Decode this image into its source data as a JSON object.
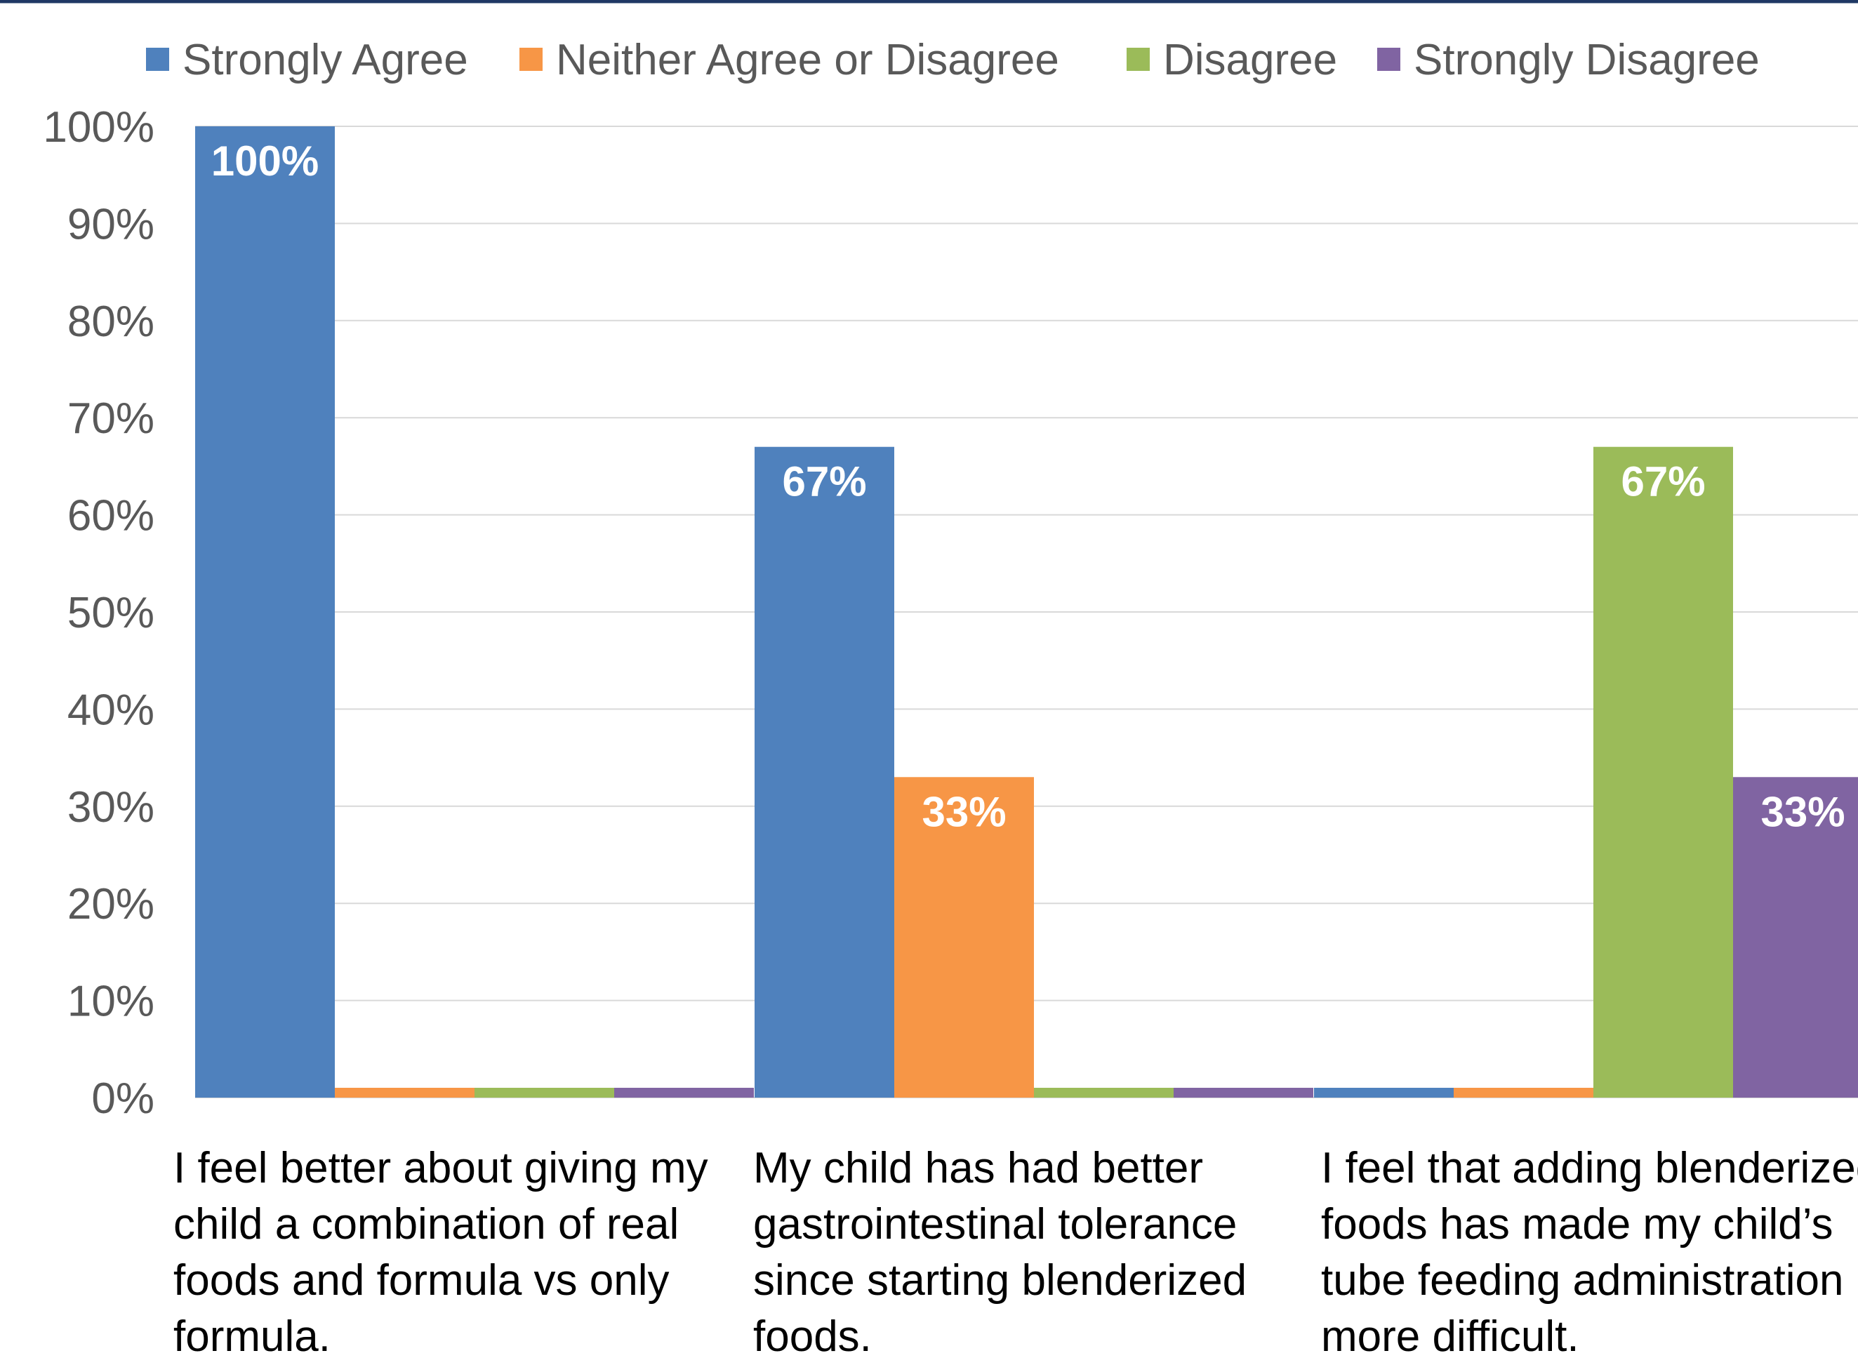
{
  "chart_data": {
    "type": "bar",
    "categories": [
      "I feel better about giving my child a combination of real foods and formula vs only formula.",
      "My child has had better gastrointestinal tolerance since starting blenderized foods.",
      "I feel that adding blenderized foods has made my child’s tube feeding administration more difficult."
    ],
    "series": [
      {
        "name": "Strongly Agree",
        "color": "#4F81BD",
        "values": [
          100,
          67,
          0
        ],
        "labels": [
          "100%",
          "67%",
          ""
        ]
      },
      {
        "name": "Neither Agree or Disagree",
        "color": "#F79646",
        "values": [
          0,
          33,
          0
        ],
        "labels": [
          "",
          "33%",
          ""
        ]
      },
      {
        "name": "Disagree",
        "color": "#9BBB59",
        "values": [
          0,
          0,
          67
        ],
        "labels": [
          "",
          "",
          "67%"
        ]
      },
      {
        "name": "Strongly Disagree",
        "color": "#8064A2",
        "values": [
          0,
          0,
          33
        ],
        "labels": [
          "",
          "",
          "33%"
        ]
      }
    ],
    "ylim": [
      0,
      100
    ],
    "yticks": [
      "0%",
      "10%",
      "20%",
      "30%",
      "40%",
      "50%",
      "60%",
      "70%",
      "80%",
      "90%",
      "100%"
    ],
    "grid": true,
    "legend_position": "top",
    "title": "",
    "xlabel": "",
    "ylabel": ""
  }
}
